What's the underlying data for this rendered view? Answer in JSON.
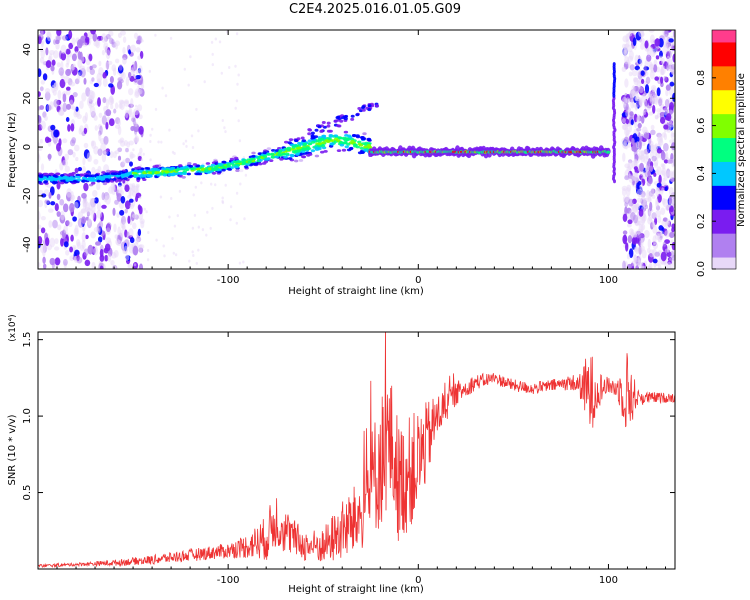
{
  "title": "C2E4.2025.016.01.05.G09",
  "chart_data": [
    {
      "type": "heatmap",
      "xlabel": "Height of straight line (km)",
      "ylabel": "Frequency (Hz)",
      "xlim": [
        -200,
        135
      ],
      "ylim": [
        -50,
        48
      ],
      "xticks": [
        -100,
        0,
        100
      ],
      "xtick_labels": [
        "-100",
        "0",
        "100"
      ],
      "yticks": [
        -40,
        -20,
        0,
        20,
        40
      ],
      "ytick_labels": [
        "-40",
        "-20",
        "0",
        "20",
        "40"
      ],
      "colorbar": {
        "label": "Normalized spectral amplitude",
        "range": [
          0,
          1
        ],
        "ticks": [
          0.0,
          0.2,
          0.4,
          0.6,
          0.8
        ],
        "tick_labels": [
          "0.0",
          "0.2",
          "0.4",
          "0.6",
          "0.8"
        ],
        "colormap": [
          "#e8d8f8",
          "#b080f0",
          "#7a1cf0",
          "#0000ff",
          "#00c8ff",
          "#00ff80",
          "#80ff00",
          "#ffff00",
          "#ff8000",
          "#ff0000",
          "#ff3c8c"
        ]
      },
      "trend": {
        "x": [
          -190,
          -170,
          -150,
          -130,
          -110,
          -90,
          -70,
          -55,
          -45,
          -35,
          -25,
          -15,
          0,
          20,
          40,
          60,
          80,
          95,
          100
        ],
        "y": [
          -13,
          -13,
          -11,
          -10,
          -9,
          -6,
          -2,
          1,
          3,
          2,
          0,
          -1,
          -2,
          -2,
          -2,
          -2,
          -2,
          -2,
          -2
        ]
      },
      "line_segment": {
        "x": [
          -25,
          100
        ],
        "y": -2
      },
      "spike": {
        "x": 103,
        "y_range": [
          -14,
          34
        ]
      },
      "noise_regions": [
        [
          -200,
          -145
        ],
        [
          108,
          135
        ]
      ]
    },
    {
      "type": "line",
      "xlabel": "Height of straight line (km)",
      "ylabel": "SNR (10 * v/v)",
      "y_multiplier": "(x10⁴)",
      "xlim": [
        -200,
        135
      ],
      "ylim": [
        0,
        1.55
      ],
      "xticks": [
        -100,
        0,
        100
      ],
      "xtick_labels": [
        "-100",
        "0",
        "100"
      ],
      "yticks": [
        0.5,
        1.0,
        1.5
      ],
      "ytick_labels": [
        "0.5",
        "1.0",
        "1.5"
      ],
      "color": "#ee3333",
      "series": [
        {
          "x": [
            -200,
            -180,
            -160,
            -140,
            -120,
            -100,
            -90,
            -80,
            -75,
            -70,
            -60,
            -50,
            -40,
            -30,
            -25,
            -20,
            -15,
            -10,
            0,
            10,
            20,
            30,
            40,
            50,
            60,
            70,
            80,
            85,
            90,
            95,
            100,
            105,
            110,
            115,
            120,
            135
          ],
          "y": [
            0.02,
            0.03,
            0.04,
            0.06,
            0.09,
            0.12,
            0.15,
            0.2,
            0.33,
            0.25,
            0.15,
            0.15,
            0.25,
            0.35,
            0.55,
            0.7,
            0.85,
            0.55,
            0.7,
            1.0,
            1.15,
            1.22,
            1.25,
            1.2,
            1.18,
            1.2,
            1.22,
            1.2,
            1.15,
            1.18,
            1.2,
            1.18,
            1.15,
            1.12,
            1.12,
            1.12
          ],
          "amp": [
            0.01,
            0.01,
            0.02,
            0.03,
            0.04,
            0.05,
            0.08,
            0.15,
            0.2,
            0.15,
            0.1,
            0.12,
            0.2,
            0.25,
            0.35,
            0.45,
            0.45,
            0.4,
            0.35,
            0.15,
            0.08,
            0.05,
            0.04,
            0.04,
            0.04,
            0.04,
            0.05,
            0.08,
            0.3,
            0.12,
            0.05,
            0.08,
            0.3,
            0.06,
            0.04,
            0.03
          ]
        }
      ]
    }
  ]
}
